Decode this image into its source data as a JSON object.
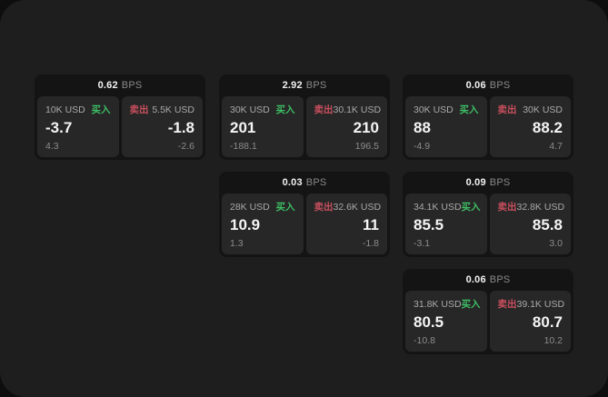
{
  "labels": {
    "bps_unit": "BPS",
    "buy": "买入",
    "sell": "卖出"
  },
  "colors": {
    "backdrop": "#0e0e0e",
    "window_bg": "#1e1e1e",
    "card_bg": "#141414",
    "panel_bg": "#272727",
    "buy_green": "#3dbe64",
    "sell_red": "#c94f5e",
    "value_white": "#f5f5f5",
    "muted_gray": "#8c8c8c"
  },
  "cards": [
    {
      "bps": "0.62",
      "buy": {
        "amount": "10K USD",
        "value": "-3.7",
        "sub": "4.3"
      },
      "sell": {
        "amount": "5.5K USD",
        "value": "-1.8",
        "sub": "-2.6"
      }
    },
    {
      "bps": "2.92",
      "buy": {
        "amount": "30K USD",
        "value": "201",
        "sub": "-188.1"
      },
      "sell": {
        "amount": "30.1K USD",
        "value": "210",
        "sub": "196.5"
      }
    },
    {
      "bps": "0.06",
      "buy": {
        "amount": "30K USD",
        "value": "88",
        "sub": "-4.9"
      },
      "sell": {
        "amount": "30K USD",
        "value": "88.2",
        "sub": "4.7"
      }
    },
    {
      "bps": "0.03",
      "buy": {
        "amount": "28K USD",
        "value": "10.9",
        "sub": "1.3"
      },
      "sell": {
        "amount": "32.6K USD",
        "value": "11",
        "sub": "-1.8"
      }
    },
    {
      "bps": "0.09",
      "buy": {
        "amount": "34.1K USD",
        "value": "85.5",
        "sub": "-3.1"
      },
      "sell": {
        "amount": "32.8K USD",
        "value": "85.8",
        "sub": "3.0"
      }
    },
    {
      "bps": "0.06",
      "buy": {
        "amount": "31.8K USD",
        "value": "80.5",
        "sub": "-10.8"
      },
      "sell": {
        "amount": "39.1K USD",
        "value": "80.7",
        "sub": "10.2"
      }
    }
  ]
}
